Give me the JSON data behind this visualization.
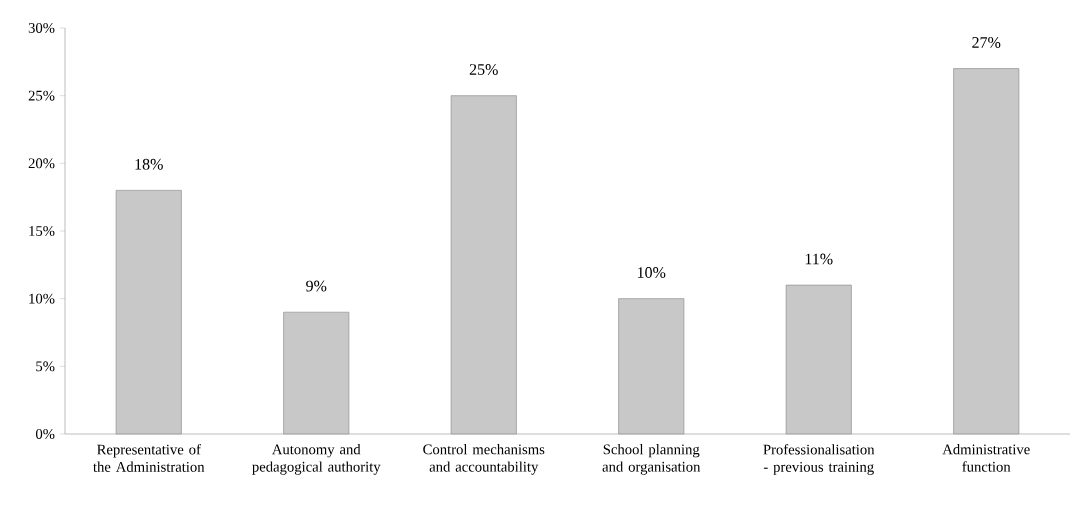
{
  "chart_data": {
    "type": "bar",
    "categories": [
      "Representative of the Administration",
      "Autonomy and pedagogical authority",
      "Control mechanisms and accountability",
      "School planning and organisation",
      "Professionalisation - previous training",
      "Administrative function"
    ],
    "values": [
      18,
      9,
      25,
      10,
      11,
      27
    ],
    "value_labels": [
      "18%",
      "9%",
      "25%",
      "10%",
      "11%",
      "27%"
    ],
    "color": "#c8c8c8",
    "ylim": [
      0,
      30
    ],
    "yticks": [
      {
        "value": 0,
        "label": "0%"
      },
      {
        "value": 5,
        "label": "5%"
      },
      {
        "value": 10,
        "label": "10%"
      },
      {
        "value": 15,
        "label": "15%"
      },
      {
        "value": 20,
        "label": "20%"
      },
      {
        "value": 25,
        "label": "25%"
      },
      {
        "value": 30,
        "label": "30%"
      }
    ],
    "grid": false
  }
}
